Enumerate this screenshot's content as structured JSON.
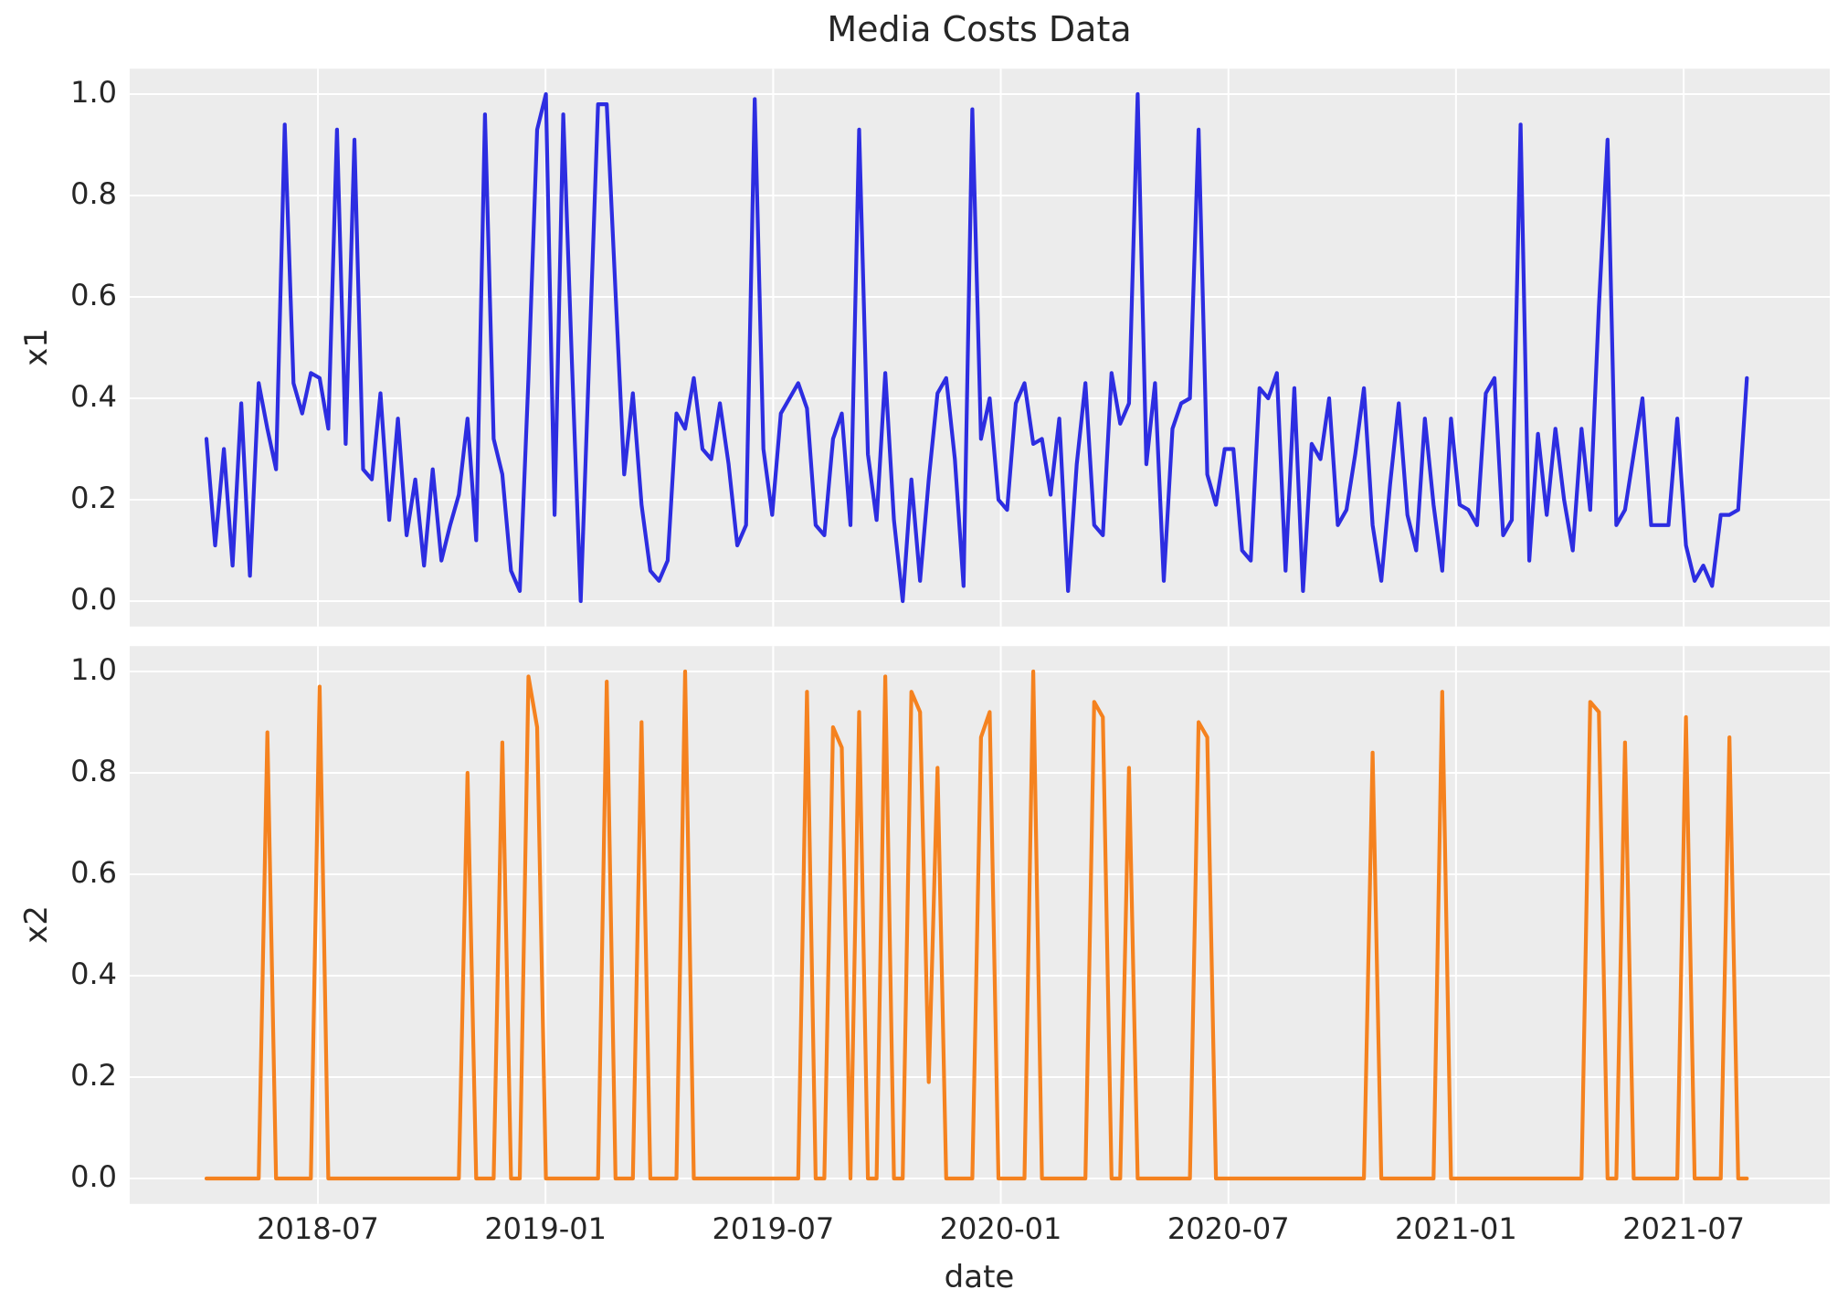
{
  "title": "Media Costs Data",
  "x_axis": {
    "label": "date",
    "tick_labels": [
      "2018-07",
      "2019-01",
      "2019-07",
      "2020-01",
      "2020-07",
      "2021-01",
      "2021-07"
    ],
    "tick_weeks": [
      12.81,
      38.96,
      65.12,
      91.27,
      117.43,
      143.58,
      169.74
    ]
  },
  "y_axis": {
    "tick_labels": [
      "1.0",
      "0.8",
      "0.6",
      "0.4",
      "0.2",
      "0.0"
    ],
    "tick_values": [
      1.0,
      0.8,
      0.6,
      0.4,
      0.2,
      0.0
    ]
  },
  "colors": {
    "plot_background": "#ececec",
    "gridline": "#ffffff",
    "x1_line": "#2d2de1",
    "x2_line": "#f5821f",
    "text": "#262626"
  },
  "chart_data": {
    "type": "line",
    "title": "Media Costs Data",
    "xlabel": "date",
    "x_start_date": "2018-04-01",
    "x_step_days": 7,
    "n_points": 178,
    "ylim": [
      -0.05,
      1.05
    ],
    "grid": true,
    "legend": false,
    "subplots": [
      {
        "ylabel": "x1",
        "color": "#2d2de1",
        "values": [
          0.32,
          0.11,
          0.3,
          0.07,
          0.39,
          0.05,
          0.43,
          0.34,
          0.26,
          0.94,
          0.43,
          0.37,
          0.45,
          0.44,
          0.34,
          0.93,
          0.31,
          0.91,
          0.26,
          0.24,
          0.41,
          0.16,
          0.36,
          0.13,
          0.24,
          0.07,
          0.26,
          0.08,
          0.15,
          0.21,
          0.36,
          0.12,
          0.96,
          0.32,
          0.25,
          0.06,
          0.02,
          0.44,
          0.93,
          1.0,
          0.17,
          0.96,
          0.47,
          0.0,
          0.49,
          0.98,
          0.98,
          0.61,
          0.25,
          0.41,
          0.19,
          0.06,
          0.04,
          0.08,
          0.37,
          0.34,
          0.44,
          0.3,
          0.28,
          0.39,
          0.27,
          0.11,
          0.15,
          0.99,
          0.3,
          0.17,
          0.37,
          0.4,
          0.43,
          0.38,
          0.15,
          0.13,
          0.32,
          0.37,
          0.15,
          0.93,
          0.29,
          0.16,
          0.45,
          0.16,
          0.0,
          0.24,
          0.04,
          0.24,
          0.41,
          0.44,
          0.28,
          0.03,
          0.97,
          0.32,
          0.4,
          0.2,
          0.18,
          0.39,
          0.43,
          0.31,
          0.32,
          0.21,
          0.36,
          0.02,
          0.27,
          0.43,
          0.15,
          0.13,
          0.45,
          0.35,
          0.39,
          1.0,
          0.27,
          0.43,
          0.04,
          0.34,
          0.39,
          0.4,
          0.93,
          0.25,
          0.19,
          0.3,
          0.3,
          0.1,
          0.08,
          0.42,
          0.4,
          0.45,
          0.06,
          0.42,
          0.02,
          0.31,
          0.28,
          0.4,
          0.15,
          0.18,
          0.29,
          0.42,
          0.15,
          0.04,
          0.23,
          0.39,
          0.17,
          0.1,
          0.36,
          0.19,
          0.06,
          0.36,
          0.19,
          0.18,
          0.15,
          0.41,
          0.44,
          0.13,
          0.16,
          0.94,
          0.08,
          0.33,
          0.17,
          0.34,
          0.2,
          0.1,
          0.34,
          0.18,
          0.58,
          0.91,
          0.15,
          0.18,
          0.29,
          0.4,
          0.15,
          0.15,
          0.15,
          0.36,
          0.11,
          0.04,
          0.07,
          0.03,
          0.17,
          0.17,
          0.18,
          0.44
        ]
      },
      {
        "ylabel": "x2",
        "color": "#f5821f",
        "values": [
          0,
          0,
          0,
          0,
          0,
          0,
          0,
          0.88,
          0,
          0,
          0,
          0,
          0,
          0.97,
          0,
          0,
          0,
          0,
          0,
          0,
          0,
          0,
          0,
          0,
          0,
          0,
          0,
          0,
          0,
          0,
          0.8,
          0,
          0,
          0,
          0.86,
          0,
          0,
          0.99,
          0.89,
          0,
          0,
          0,
          0,
          0,
          0,
          0,
          0.98,
          0,
          0,
          0,
          0.9,
          0,
          0,
          0,
          0,
          1.0,
          0,
          0,
          0,
          0,
          0,
          0,
          0,
          0,
          0,
          0,
          0,
          0,
          0,
          0.96,
          0,
          0,
          0.89,
          0.85,
          0,
          0.92,
          0,
          0,
          0.99,
          0,
          0,
          0.96,
          0.92,
          0.19,
          0.81,
          0,
          0,
          0,
          0,
          0.87,
          0.92,
          0,
          0,
          0,
          0,
          1.0,
          0,
          0,
          0,
          0,
          0,
          0,
          0.94,
          0.91,
          0,
          0,
          0.81,
          0,
          0,
          0,
          0,
          0,
          0,
          0,
          0.9,
          0.87,
          0,
          0,
          0,
          0,
          0,
          0,
          0,
          0,
          0,
          0,
          0,
          0,
          0,
          0,
          0,
          0,
          0,
          0,
          0.84,
          0,
          0,
          0,
          0,
          0,
          0,
          0,
          0.96,
          0,
          0,
          0,
          0,
          0,
          0,
          0,
          0,
          0,
          0,
          0,
          0,
          0,
          0,
          0,
          0,
          0.94,
          0.92,
          0,
          0,
          0.86,
          0,
          0,
          0,
          0,
          0,
          0,
          0.91,
          0,
          0,
          0,
          0,
          0.87,
          0,
          0
        ]
      }
    ]
  }
}
